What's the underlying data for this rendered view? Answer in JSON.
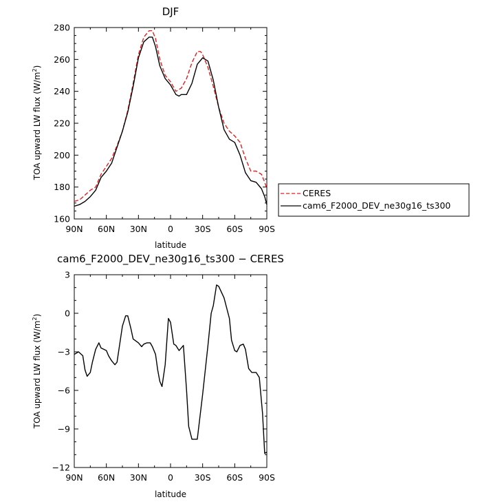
{
  "chart_data": [
    {
      "type": "line",
      "title": "DJF",
      "xlabel": "latitude",
      "ylabel_main": "TOA upward LW flux (W/m",
      "ylabel_sup": "2",
      "ylabel_tail": ")",
      "xlim": [
        -90,
        90
      ],
      "ylim": [
        160,
        280
      ],
      "x_ticks": [
        -90,
        -60,
        -30,
        0,
        30,
        60,
        90
      ],
      "x_tick_labels": [
        "90N",
        "60N",
        "30N",
        "0",
        "30S",
        "60S",
        "90S"
      ],
      "y_ticks": [
        160,
        180,
        200,
        220,
        240,
        260,
        280
      ],
      "y_tick_labels": [
        "160",
        "180",
        "200",
        "220",
        "240",
        "260",
        "280"
      ],
      "legend": "right",
      "series": [
        {
          "name": "CERES",
          "color": "#e02020",
          "dash": "dashed",
          "x": [
            -90,
            -85,
            -80,
            -75,
            -70,
            -65,
            -60,
            -55,
            -50,
            -45,
            -40,
            -35,
            -30,
            -25,
            -20,
            -17,
            -14,
            -10,
            -5,
            0,
            5,
            10,
            15,
            20,
            25,
            28,
            30,
            35,
            40,
            45,
            50,
            55,
            60,
            65,
            70,
            75,
            80,
            85,
            88,
            90
          ],
          "y": [
            171,
            172,
            175,
            178,
            180,
            188,
            193,
            198,
            206,
            215,
            228,
            245,
            263,
            274,
            278,
            278,
            273,
            260,
            250,
            246,
            240,
            242,
            248,
            258,
            265,
            265,
            263,
            255,
            243,
            230,
            220,
            215,
            212,
            208,
            198,
            190,
            190,
            188,
            183,
            179
          ]
        },
        {
          "name": "cam6_F2000_DEV_ne30g16_ts300",
          "color": "#000000",
          "dash": "solid",
          "x": [
            -90,
            -85,
            -80,
            -75,
            -70,
            -65,
            -60,
            -55,
            -50,
            -45,
            -40,
            -35,
            -30,
            -25,
            -20,
            -17,
            -14,
            -10,
            -5,
            0,
            5,
            8,
            10,
            15,
            20,
            25,
            30,
            35,
            40,
            45,
            50,
            55,
            60,
            65,
            70,
            75,
            80,
            85,
            88,
            90
          ],
          "y": [
            168,
            169,
            171,
            174,
            178,
            186,
            190,
            195,
            205,
            215,
            227,
            243,
            261,
            271,
            274,
            274,
            268,
            256,
            248,
            244,
            238,
            237,
            238,
            238,
            245,
            257,
            261,
            259,
            247,
            230,
            216,
            210,
            208,
            200,
            189,
            184,
            183,
            179,
            174,
            169
          ]
        }
      ]
    },
    {
      "type": "line",
      "title": "cam6_F2000_DEV_ne30g16_ts300 − CERES",
      "xlabel": "latitude",
      "ylabel_main": "TOA upward LW flux (W/m",
      "ylabel_sup": "2",
      "ylabel_tail": ")",
      "xlim": [
        -90,
        90
      ],
      "ylim": [
        -12,
        3
      ],
      "x_ticks": [
        -90,
        -60,
        -30,
        0,
        30,
        60,
        90
      ],
      "x_tick_labels": [
        "90N",
        "60N",
        "30N",
        "0",
        "30S",
        "60S",
        "90S"
      ],
      "y_ticks": [
        -12,
        -9,
        -6,
        -3,
        0,
        3
      ],
      "y_tick_labels": [
        "−12",
        "−9",
        "−6",
        "−3",
        "0",
        "3"
      ],
      "series": [
        {
          "color": "#000000",
          "dash": "solid",
          "x": [
            -90,
            -86,
            -82,
            -80,
            -78,
            -75,
            -73,
            -70,
            -67,
            -65,
            -60,
            -58,
            -55,
            -52,
            -50,
            -45,
            -42,
            -40,
            -37,
            -35,
            -30,
            -27,
            -25,
            -22,
            -19,
            -17,
            -14,
            -12,
            -10,
            -8,
            -5,
            -2,
            0,
            3,
            5,
            8,
            10,
            12,
            15,
            17,
            20,
            25,
            30,
            35,
            38,
            40,
            43,
            45,
            50,
            55,
            57,
            60,
            62,
            65,
            68,
            70,
            73,
            76,
            78,
            80,
            83,
            86,
            88,
            90
          ],
          "y": [
            -3.2,
            -3.0,
            -3.3,
            -4.4,
            -4.9,
            -4.6,
            -3.8,
            -2.8,
            -2.3,
            -2.7,
            -2.9,
            -3.3,
            -3.7,
            -4.0,
            -3.8,
            -1.0,
            -0.2,
            -0.2,
            -1.2,
            -2.0,
            -2.3,
            -2.6,
            -2.4,
            -2.3,
            -2.3,
            -2.6,
            -3.2,
            -4.4,
            -5.3,
            -5.7,
            -4.0,
            -0.4,
            -0.7,
            -2.4,
            -2.5,
            -2.9,
            -2.7,
            -2.5,
            -6.0,
            -8.8,
            -9.8,
            -9.8,
            -6.3,
            -2.5,
            0.0,
            0.6,
            2.2,
            2.1,
            1.2,
            -0.4,
            -2.1,
            -2.9,
            -3.0,
            -2.5,
            -2.4,
            -2.8,
            -4.3,
            -4.6,
            -4.6,
            -4.6,
            -5.0,
            -7.8,
            -10.9,
            -10.8
          ]
        }
      ]
    }
  ]
}
